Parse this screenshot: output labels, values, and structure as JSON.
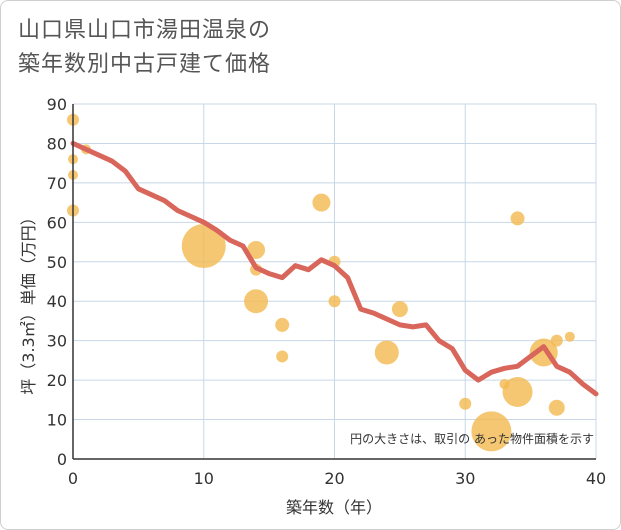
{
  "title_line1": "山口県山口市湯田温泉の",
  "title_line2": "築年数別中古戸建て価格",
  "chart_data": {
    "type": "scatter",
    "xlabel": "築年数（年）",
    "ylabel": "坪（3.3㎡）単価（万円）",
    "xlim": [
      0,
      40
    ],
    "ylim": [
      0,
      90
    ],
    "xticks": [
      0,
      10,
      20,
      30,
      40
    ],
    "yticks": [
      0,
      10,
      20,
      30,
      40,
      50,
      60,
      70,
      80,
      90
    ],
    "grid": true,
    "note": "円の大きさは、取引の あった物件面積を示す",
    "colors": {
      "bubble": "#f3b94f",
      "line": "#d9665a",
      "grid": "#c8d7e8"
    },
    "bubbles": [
      {
        "x": 0,
        "y": 86,
        "r": 6
      },
      {
        "x": 0,
        "y": 76,
        "r": 5
      },
      {
        "x": 0,
        "y": 72,
        "r": 5
      },
      {
        "x": 0,
        "y": 63,
        "r": 6
      },
      {
        "x": 1,
        "y": 78.5,
        "r": 5
      },
      {
        "x": 10,
        "y": 54,
        "r": 22
      },
      {
        "x": 14,
        "y": 53,
        "r": 9
      },
      {
        "x": 14,
        "y": 48,
        "r": 6
      },
      {
        "x": 14,
        "y": 40,
        "r": 12
      },
      {
        "x": 16,
        "y": 34,
        "r": 7
      },
      {
        "x": 16,
        "y": 26,
        "r": 6
      },
      {
        "x": 19,
        "y": 65,
        "r": 9
      },
      {
        "x": 20,
        "y": 50,
        "r": 6
      },
      {
        "x": 20,
        "y": 40,
        "r": 6
      },
      {
        "x": 24,
        "y": 27,
        "r": 12
      },
      {
        "x": 25,
        "y": 38,
        "r": 8
      },
      {
        "x": 30,
        "y": 14,
        "r": 6
      },
      {
        "x": 32,
        "y": 7,
        "r": 20
      },
      {
        "x": 33,
        "y": 19,
        "r": 5
      },
      {
        "x": 34,
        "y": 17,
        "r": 15
      },
      {
        "x": 34,
        "y": 61,
        "r": 7
      },
      {
        "x": 36,
        "y": 27,
        "r": 14
      },
      {
        "x": 37,
        "y": 30,
        "r": 6
      },
      {
        "x": 37,
        "y": 13,
        "r": 8
      },
      {
        "x": 38,
        "y": 31,
        "r": 5
      }
    ],
    "trend": {
      "x": [
        0,
        1,
        2,
        3,
        4,
        5,
        6,
        7,
        8,
        9,
        10,
        11,
        12,
        13,
        14,
        15,
        16,
        17,
        18,
        19,
        20,
        21,
        22,
        23,
        24,
        25,
        26,
        27,
        28,
        29,
        30,
        31,
        32,
        33,
        34,
        35,
        36,
        37,
        38,
        39,
        40
      ],
      "y": [
        80,
        78.5,
        77,
        75.5,
        73,
        68.5,
        67,
        65.5,
        63,
        61.5,
        60,
        58,
        55.5,
        54,
        48.5,
        47,
        46,
        49,
        48,
        50.5,
        49,
        46,
        38,
        37,
        35.5,
        34,
        33.5,
        34,
        30,
        28,
        22.5,
        20,
        22,
        23,
        23.5,
        26,
        28.5,
        23.5,
        22,
        19,
        16.5
      ]
    }
  }
}
